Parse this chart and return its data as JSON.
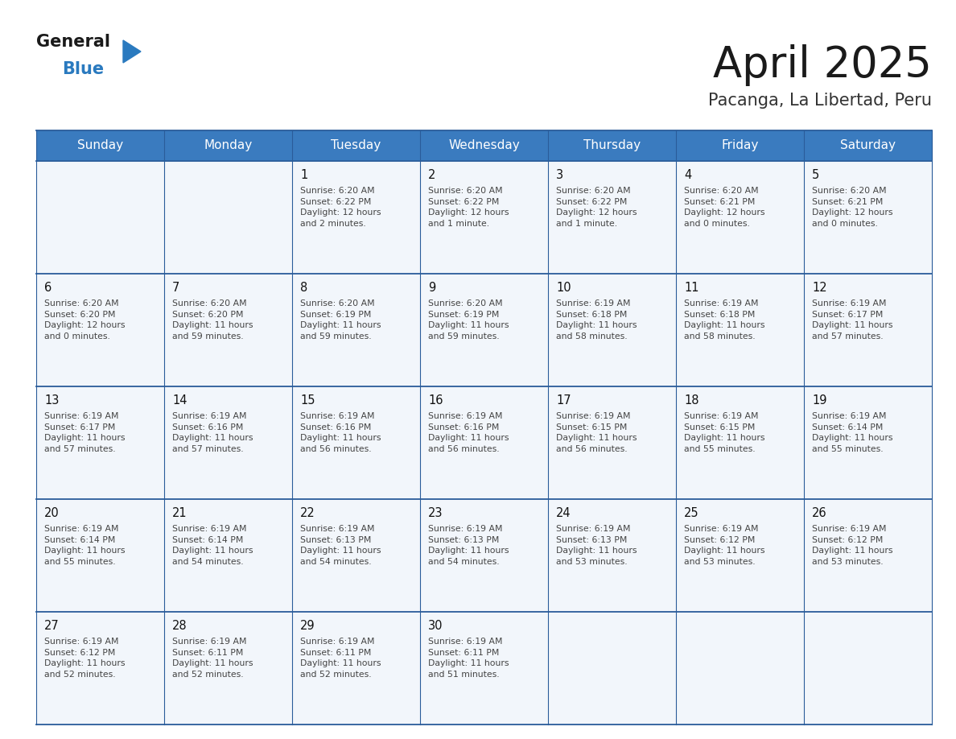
{
  "title": "April 2025",
  "subtitle": "Pacanga, La Libertad, Peru",
  "days_of_week": [
    "Sunday",
    "Monday",
    "Tuesday",
    "Wednesday",
    "Thursday",
    "Friday",
    "Saturday"
  ],
  "header_bg": "#3a7bbf",
  "header_text": "#ffffff",
  "cell_bg": "#f2f6fb",
  "border_color": "#2a5c9a",
  "title_color": "#1a1a1a",
  "subtitle_color": "#333333",
  "cell_text_color": "#444444",
  "day_num_color": "#111111",
  "logo_black": "#1a1a1a",
  "logo_blue": "#2a7abf",
  "calendar": [
    [
      {
        "day": null,
        "text": ""
      },
      {
        "day": null,
        "text": ""
      },
      {
        "day": 1,
        "text": "Sunrise: 6:20 AM\nSunset: 6:22 PM\nDaylight: 12 hours\nand 2 minutes."
      },
      {
        "day": 2,
        "text": "Sunrise: 6:20 AM\nSunset: 6:22 PM\nDaylight: 12 hours\nand 1 minute."
      },
      {
        "day": 3,
        "text": "Sunrise: 6:20 AM\nSunset: 6:22 PM\nDaylight: 12 hours\nand 1 minute."
      },
      {
        "day": 4,
        "text": "Sunrise: 6:20 AM\nSunset: 6:21 PM\nDaylight: 12 hours\nand 0 minutes."
      },
      {
        "day": 5,
        "text": "Sunrise: 6:20 AM\nSunset: 6:21 PM\nDaylight: 12 hours\nand 0 minutes."
      }
    ],
    [
      {
        "day": 6,
        "text": "Sunrise: 6:20 AM\nSunset: 6:20 PM\nDaylight: 12 hours\nand 0 minutes."
      },
      {
        "day": 7,
        "text": "Sunrise: 6:20 AM\nSunset: 6:20 PM\nDaylight: 11 hours\nand 59 minutes."
      },
      {
        "day": 8,
        "text": "Sunrise: 6:20 AM\nSunset: 6:19 PM\nDaylight: 11 hours\nand 59 minutes."
      },
      {
        "day": 9,
        "text": "Sunrise: 6:20 AM\nSunset: 6:19 PM\nDaylight: 11 hours\nand 59 minutes."
      },
      {
        "day": 10,
        "text": "Sunrise: 6:19 AM\nSunset: 6:18 PM\nDaylight: 11 hours\nand 58 minutes."
      },
      {
        "day": 11,
        "text": "Sunrise: 6:19 AM\nSunset: 6:18 PM\nDaylight: 11 hours\nand 58 minutes."
      },
      {
        "day": 12,
        "text": "Sunrise: 6:19 AM\nSunset: 6:17 PM\nDaylight: 11 hours\nand 57 minutes."
      }
    ],
    [
      {
        "day": 13,
        "text": "Sunrise: 6:19 AM\nSunset: 6:17 PM\nDaylight: 11 hours\nand 57 minutes."
      },
      {
        "day": 14,
        "text": "Sunrise: 6:19 AM\nSunset: 6:16 PM\nDaylight: 11 hours\nand 57 minutes."
      },
      {
        "day": 15,
        "text": "Sunrise: 6:19 AM\nSunset: 6:16 PM\nDaylight: 11 hours\nand 56 minutes."
      },
      {
        "day": 16,
        "text": "Sunrise: 6:19 AM\nSunset: 6:16 PM\nDaylight: 11 hours\nand 56 minutes."
      },
      {
        "day": 17,
        "text": "Sunrise: 6:19 AM\nSunset: 6:15 PM\nDaylight: 11 hours\nand 56 minutes."
      },
      {
        "day": 18,
        "text": "Sunrise: 6:19 AM\nSunset: 6:15 PM\nDaylight: 11 hours\nand 55 minutes."
      },
      {
        "day": 19,
        "text": "Sunrise: 6:19 AM\nSunset: 6:14 PM\nDaylight: 11 hours\nand 55 minutes."
      }
    ],
    [
      {
        "day": 20,
        "text": "Sunrise: 6:19 AM\nSunset: 6:14 PM\nDaylight: 11 hours\nand 55 minutes."
      },
      {
        "day": 21,
        "text": "Sunrise: 6:19 AM\nSunset: 6:14 PM\nDaylight: 11 hours\nand 54 minutes."
      },
      {
        "day": 22,
        "text": "Sunrise: 6:19 AM\nSunset: 6:13 PM\nDaylight: 11 hours\nand 54 minutes."
      },
      {
        "day": 23,
        "text": "Sunrise: 6:19 AM\nSunset: 6:13 PM\nDaylight: 11 hours\nand 54 minutes."
      },
      {
        "day": 24,
        "text": "Sunrise: 6:19 AM\nSunset: 6:13 PM\nDaylight: 11 hours\nand 53 minutes."
      },
      {
        "day": 25,
        "text": "Sunrise: 6:19 AM\nSunset: 6:12 PM\nDaylight: 11 hours\nand 53 minutes."
      },
      {
        "day": 26,
        "text": "Sunrise: 6:19 AM\nSunset: 6:12 PM\nDaylight: 11 hours\nand 53 minutes."
      }
    ],
    [
      {
        "day": 27,
        "text": "Sunrise: 6:19 AM\nSunset: 6:12 PM\nDaylight: 11 hours\nand 52 minutes."
      },
      {
        "day": 28,
        "text": "Sunrise: 6:19 AM\nSunset: 6:11 PM\nDaylight: 11 hours\nand 52 minutes."
      },
      {
        "day": 29,
        "text": "Sunrise: 6:19 AM\nSunset: 6:11 PM\nDaylight: 11 hours\nand 52 minutes."
      },
      {
        "day": 30,
        "text": "Sunrise: 6:19 AM\nSunset: 6:11 PM\nDaylight: 11 hours\nand 51 minutes."
      },
      {
        "day": null,
        "text": ""
      },
      {
        "day": null,
        "text": ""
      },
      {
        "day": null,
        "text": ""
      }
    ]
  ]
}
